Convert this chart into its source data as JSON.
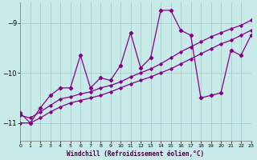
{
  "bg_color": "#c8eae8",
  "grid_color": "#a8cccc",
  "line_color": "#880088",
  "xlabel": "Windchill (Refroidissement éolien,°C)",
  "xlim": [
    0,
    23
  ],
  "ylim": [
    -11.35,
    -8.6
  ],
  "yticks": [
    -11,
    -10,
    -9
  ],
  "xticks": [
    0,
    1,
    2,
    3,
    4,
    5,
    6,
    7,
    8,
    9,
    10,
    11,
    12,
    13,
    14,
    15,
    16,
    17,
    18,
    19,
    20,
    21,
    22,
    23
  ],
  "jagged_x": [
    0,
    1,
    2,
    3,
    4,
    5,
    6,
    7,
    8,
    9,
    10,
    11,
    12,
    13,
    14,
    15,
    16,
    17,
    18,
    19,
    20,
    21,
    22,
    23
  ],
  "jagged_y": [
    -10.8,
    -11.0,
    -10.7,
    -10.45,
    -10.3,
    -10.3,
    -9.65,
    -10.3,
    -10.1,
    -10.15,
    -9.85,
    -9.2,
    -9.9,
    -9.7,
    -8.75,
    -8.75,
    -9.15,
    -9.25,
    -10.5,
    -10.45,
    -10.4,
    -9.55,
    -9.65,
    -9.25
  ],
  "line2_x": [
    0,
    1,
    2,
    3,
    4,
    5,
    6,
    7,
    8,
    9,
    10,
    11,
    12,
    13,
    14,
    15,
    16,
    17,
    18,
    19,
    20,
    21,
    22,
    23
  ],
  "line2_y": [
    -10.85,
    -10.9,
    -10.78,
    -10.65,
    -10.52,
    -10.48,
    -10.42,
    -10.38,
    -10.3,
    -10.25,
    -10.18,
    -10.08,
    -10.0,
    -9.92,
    -9.82,
    -9.7,
    -9.58,
    -9.48,
    -9.38,
    -9.28,
    -9.2,
    -9.12,
    -9.05,
    -8.95
  ],
  "line3_x": [
    0,
    1,
    2,
    3,
    4,
    5,
    6,
    7,
    8,
    9,
    10,
    11,
    12,
    13,
    14,
    15,
    16,
    17,
    18,
    19,
    20,
    21,
    22,
    23
  ],
  "line3_y": [
    -11.0,
    -11.0,
    -10.9,
    -10.78,
    -10.68,
    -10.6,
    -10.55,
    -10.5,
    -10.45,
    -10.38,
    -10.3,
    -10.22,
    -10.15,
    -10.08,
    -10.0,
    -9.92,
    -9.82,
    -9.72,
    -9.62,
    -9.52,
    -9.42,
    -9.35,
    -9.25,
    -9.15
  ]
}
